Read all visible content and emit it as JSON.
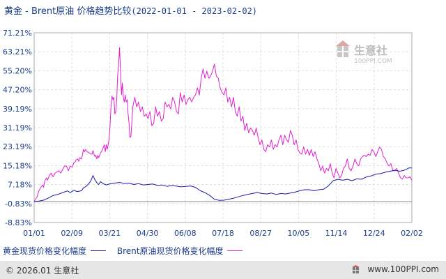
{
  "header": {
    "title": "黄金 - Brent原油 价格趋势比较",
    "range": "(2022-01-01 - 2023-02-02)"
  },
  "legend": {
    "gold": "黄金现货价格变化幅度",
    "brent": "Brent原油现货价格变化幅度"
  },
  "footer": {
    "copyright": "© 2026.01 生意社",
    "url": "www.100PPI.com"
  },
  "watermark": {
    "name": "生意社",
    "url": "100PPI.COM"
  },
  "colors": {
    "gold": "#1a1aa8",
    "brent": "#e020d0",
    "title": "#1a3c8c"
  },
  "chart_data": {
    "type": "line",
    "title": "黄金 - Brent原油 价格趋势比较",
    "xlabel": "",
    "ylabel": "",
    "x_ticks": [
      "01/01",
      "02/09",
      "03/21",
      "04/30",
      "06/08",
      "07/18",
      "08/27",
      "10/05",
      "11/14",
      "12/24",
      "02/02"
    ],
    "y_ticks": [
      "71.21%",
      "63.21%",
      "55.20%",
      "47.20%",
      "39.19%",
      "31.19%",
      "23.19%",
      "15.18%",
      "7.18%",
      "-0.83%",
      "-8.83%"
    ],
    "ylim": [
      -8.83,
      71.21
    ],
    "grid": true,
    "series": [
      {
        "name": "黄金现货价格变化幅度",
        "color": "#1a1aa8",
        "values": [
          [
            0,
            0
          ],
          [
            5,
            0.2
          ],
          [
            10,
            0.6
          ],
          [
            15,
            1.5
          ],
          [
            20,
            2.6
          ],
          [
            25,
            3
          ],
          [
            30,
            3.8
          ],
          [
            35,
            4.5
          ],
          [
            38,
            3.8
          ],
          [
            42,
            4.8
          ],
          [
            45,
            4.2
          ],
          [
            50,
            4.6
          ],
          [
            52,
            5.8
          ],
          [
            55,
            6.5
          ],
          [
            58,
            7.8
          ],
          [
            60,
            9
          ],
          [
            62,
            11
          ],
          [
            64,
            9.2
          ],
          [
            66,
            8
          ],
          [
            68,
            7.2
          ],
          [
            70,
            8.4
          ],
          [
            73,
            7.5
          ],
          [
            76,
            7
          ],
          [
            80,
            7.5
          ],
          [
            85,
            7.8
          ],
          [
            90,
            8.1
          ],
          [
            95,
            7.6
          ],
          [
            100,
            7.8
          ],
          [
            105,
            7.2
          ],
          [
            110,
            7.6
          ],
          [
            115,
            7
          ],
          [
            120,
            7.2
          ],
          [
            125,
            7.4
          ],
          [
            130,
            6.8
          ],
          [
            135,
            7
          ],
          [
            140,
            6.4
          ],
          [
            145,
            6.8
          ],
          [
            150,
            6.5
          ],
          [
            155,
            6.2
          ],
          [
            160,
            6.4
          ],
          [
            165,
            6.6
          ],
          [
            170,
            6
          ],
          [
            175,
            4.6
          ],
          [
            180,
            3.8
          ],
          [
            185,
            2.6
          ],
          [
            190,
            1
          ],
          [
            195,
            0.5
          ],
          [
            200,
            0.6
          ],
          [
            205,
            1
          ],
          [
            210,
            1.4
          ],
          [
            215,
            2
          ],
          [
            220,
            2.6
          ],
          [
            225,
            3
          ],
          [
            230,
            3.4
          ],
          [
            235,
            3.8
          ],
          [
            240,
            3.4
          ],
          [
            245,
            3.2
          ],
          [
            250,
            3.6
          ],
          [
            255,
            3
          ],
          [
            260,
            3.4
          ],
          [
            265,
            3.2
          ],
          [
            270,
            3.6
          ],
          [
            275,
            4
          ],
          [
            280,
            4.6
          ],
          [
            285,
            5
          ],
          [
            290,
            5
          ],
          [
            295,
            4.6
          ],
          [
            300,
            5
          ],
          [
            305,
            5.2
          ],
          [
            310,
            6.6
          ],
          [
            315,
            8.8
          ],
          [
            320,
            9.4
          ],
          [
            325,
            9
          ],
          [
            330,
            9.4
          ],
          [
            335,
            8.8
          ],
          [
            340,
            9.6
          ],
          [
            345,
            9.4
          ],
          [
            350,
            10.4
          ],
          [
            355,
            10.8
          ],
          [
            360,
            11.6
          ],
          [
            365,
            11.8
          ],
          [
            370,
            12.4
          ],
          [
            375,
            12.8
          ],
          [
            380,
            13.2
          ],
          [
            385,
            12.8
          ],
          [
            390,
            13.2
          ],
          [
            395,
            14.2
          ],
          [
            398,
            14.2
          ]
        ]
      },
      {
        "name": "Brent原油现货价格变化幅度",
        "color": "#e020d0",
        "values": [
          [
            0,
            0
          ],
          [
            3,
            2
          ],
          [
            5,
            4.5
          ],
          [
            7,
            6
          ],
          [
            9,
            7
          ],
          [
            10,
            6
          ],
          [
            11,
            8.5
          ],
          [
            13,
            10
          ],
          [
            14,
            9
          ],
          [
            16,
            11
          ],
          [
            18,
            12
          ],
          [
            19,
            11
          ],
          [
            20,
            10.5
          ],
          [
            22,
            12
          ],
          [
            24,
            12.5
          ],
          [
            26,
            13
          ],
          [
            28,
            12
          ],
          [
            30,
            13.5
          ],
          [
            32,
            15
          ],
          [
            34,
            15
          ],
          [
            36,
            13
          ],
          [
            38,
            15
          ],
          [
            40,
            14.5
          ],
          [
            42,
            16.5
          ],
          [
            43,
            16.5
          ],
          [
            44,
            17.5
          ],
          [
            46,
            18
          ],
          [
            47,
            17
          ],
          [
            48,
            18.5
          ],
          [
            50,
            18
          ],
          [
            51,
            20
          ],
          [
            52,
            22
          ],
          [
            53,
            21
          ],
          [
            54,
            22
          ],
          [
            56,
            21
          ],
          [
            58,
            20.5
          ],
          [
            60,
            20
          ],
          [
            61,
            20
          ],
          [
            62,
            21.5
          ],
          [
            63,
            20
          ],
          [
            64,
            19
          ],
          [
            65,
            19.5
          ],
          [
            66,
            18
          ],
          [
            67,
            19.5
          ],
          [
            68,
            18.5
          ],
          [
            70,
            20.5
          ],
          [
            72,
            22
          ],
          [
            73,
            23
          ],
          [
            74,
            24
          ],
          [
            75,
            21
          ],
          [
            76,
            24
          ],
          [
            77,
            22
          ],
          [
            78,
            24
          ],
          [
            79,
            26.5
          ],
          [
            80,
            32
          ],
          [
            81,
            40
          ],
          [
            82,
            44.5
          ],
          [
            83,
            43
          ],
          [
            84,
            44
          ],
          [
            85,
            37
          ],
          [
            86,
            38
          ],
          [
            87,
            43
          ],
          [
            88,
            53
          ],
          [
            89,
            58
          ],
          [
            90,
            65
          ],
          [
            91,
            55
          ],
          [
            92,
            45
          ],
          [
            93,
            50
          ],
          [
            94,
            44
          ],
          [
            95,
            42
          ],
          [
            96,
            45
          ],
          [
            97,
            42
          ],
          [
            98,
            43
          ],
          [
            99,
            37
          ],
          [
            100,
            33
          ],
          [
            101,
            27
          ],
          [
            102,
            27.5
          ],
          [
            104,
            40
          ],
          [
            106,
            44
          ],
          [
            108,
            40
          ],
          [
            110,
            42
          ],
          [
            112,
            38
          ],
          [
            114,
            40
          ],
          [
            116,
            36
          ],
          [
            118,
            37
          ],
          [
            120,
            35
          ],
          [
            122,
            38
          ],
          [
            124,
            32
          ],
          [
            126,
            33
          ],
          [
            128,
            40
          ],
          [
            130,
            36
          ],
          [
            132,
            38
          ],
          [
            134,
            34
          ],
          [
            136,
            35
          ],
          [
            138,
            42
          ],
          [
            140,
            40
          ],
          [
            142,
            41
          ],
          [
            144,
            39
          ],
          [
            146,
            44
          ],
          [
            148,
            42
          ],
          [
            150,
            38
          ],
          [
            152,
            37
          ],
          [
            154,
            46
          ],
          [
            156,
            42
          ],
          [
            158,
            45
          ],
          [
            160,
            41
          ],
          [
            162,
            43
          ],
          [
            164,
            44
          ],
          [
            166,
            42
          ],
          [
            168,
            44
          ],
          [
            170,
            45
          ],
          [
            172,
            48
          ],
          [
            174,
            45
          ],
          [
            176,
            52
          ],
          [
            178,
            56
          ],
          [
            180,
            52
          ],
          [
            182,
            55
          ],
          [
            184,
            52
          ],
          [
            186,
            53
          ],
          [
            188,
            55
          ],
          [
            190,
            58
          ],
          [
            192,
            53
          ],
          [
            194,
            52
          ],
          [
            196,
            48
          ],
          [
            198,
            46
          ],
          [
            200,
            45
          ],
          [
            202,
            48
          ],
          [
            204,
            42
          ],
          [
            206,
            44
          ],
          [
            208,
            40
          ],
          [
            210,
            44
          ],
          [
            212,
            38
          ],
          [
            214,
            36
          ],
          [
            216,
            40
          ],
          [
            218,
            34
          ],
          [
            220,
            36
          ],
          [
            222,
            30
          ],
          [
            224,
            33
          ],
          [
            226,
            29
          ],
          [
            228,
            31
          ],
          [
            230,
            30
          ],
          [
            232,
            28
          ],
          [
            234,
            31
          ],
          [
            236,
            27
          ],
          [
            238,
            24
          ],
          [
            240,
            26
          ],
          [
            242,
            22
          ],
          [
            244,
            21
          ],
          [
            246,
            24
          ],
          [
            248,
            23
          ],
          [
            250,
            26
          ],
          [
            252,
            22
          ],
          [
            254,
            24
          ],
          [
            256,
            23
          ],
          [
            258,
            26
          ],
          [
            260,
            28
          ],
          [
            262,
            24
          ],
          [
            264,
            28
          ],
          [
            266,
            26
          ],
          [
            268,
            25
          ],
          [
            270,
            30
          ],
          [
            272,
            28
          ],
          [
            274,
            24
          ],
          [
            276,
            26
          ],
          [
            278,
            22
          ],
          [
            280,
            20.5
          ],
          [
            282,
            20
          ],
          [
            284,
            23
          ],
          [
            286,
            20
          ],
          [
            288,
            22
          ],
          [
            290,
            19.5
          ],
          [
            292,
            22
          ],
          [
            294,
            19
          ],
          [
            296,
            21
          ],
          [
            298,
            18
          ],
          [
            300,
            16
          ],
          [
            302,
            13
          ],
          [
            304,
            15
          ],
          [
            306,
            12
          ],
          [
            308,
            14
          ],
          [
            310,
            13
          ],
          [
            312,
            16
          ],
          [
            314,
            12
          ],
          [
            316,
            10
          ],
          [
            318,
            14
          ],
          [
            320,
            12
          ],
          [
            322,
            10
          ],
          [
            324,
            11
          ],
          [
            326,
            14
          ],
          [
            328,
            15
          ],
          [
            330,
            18
          ],
          [
            332,
            14
          ],
          [
            334,
            13
          ],
          [
            336,
            15
          ],
          [
            338,
            18
          ],
          [
            340,
            16
          ],
          [
            342,
            15
          ],
          [
            344,
            18
          ],
          [
            346,
            19
          ],
          [
            348,
            19.5
          ],
          [
            350,
            19
          ],
          [
            352,
            20
          ],
          [
            354,
            19.5
          ],
          [
            356,
            22
          ],
          [
            358,
            21
          ],
          [
            360,
            19
          ],
          [
            362,
            21
          ],
          [
            364,
            23
          ],
          [
            366,
            22
          ],
          [
            368,
            19
          ],
          [
            370,
            18
          ],
          [
            372,
            16
          ],
          [
            374,
            15
          ],
          [
            376,
            16
          ],
          [
            378,
            13
          ],
          [
            380,
            13
          ],
          [
            382,
            14
          ],
          [
            384,
            12
          ],
          [
            386,
            10
          ],
          [
            388,
            9.5
          ],
          [
            390,
            11
          ],
          [
            392,
            10
          ],
          [
            394,
            10
          ],
          [
            396,
            10.5
          ],
          [
            398,
            9
          ]
        ]
      }
    ]
  }
}
